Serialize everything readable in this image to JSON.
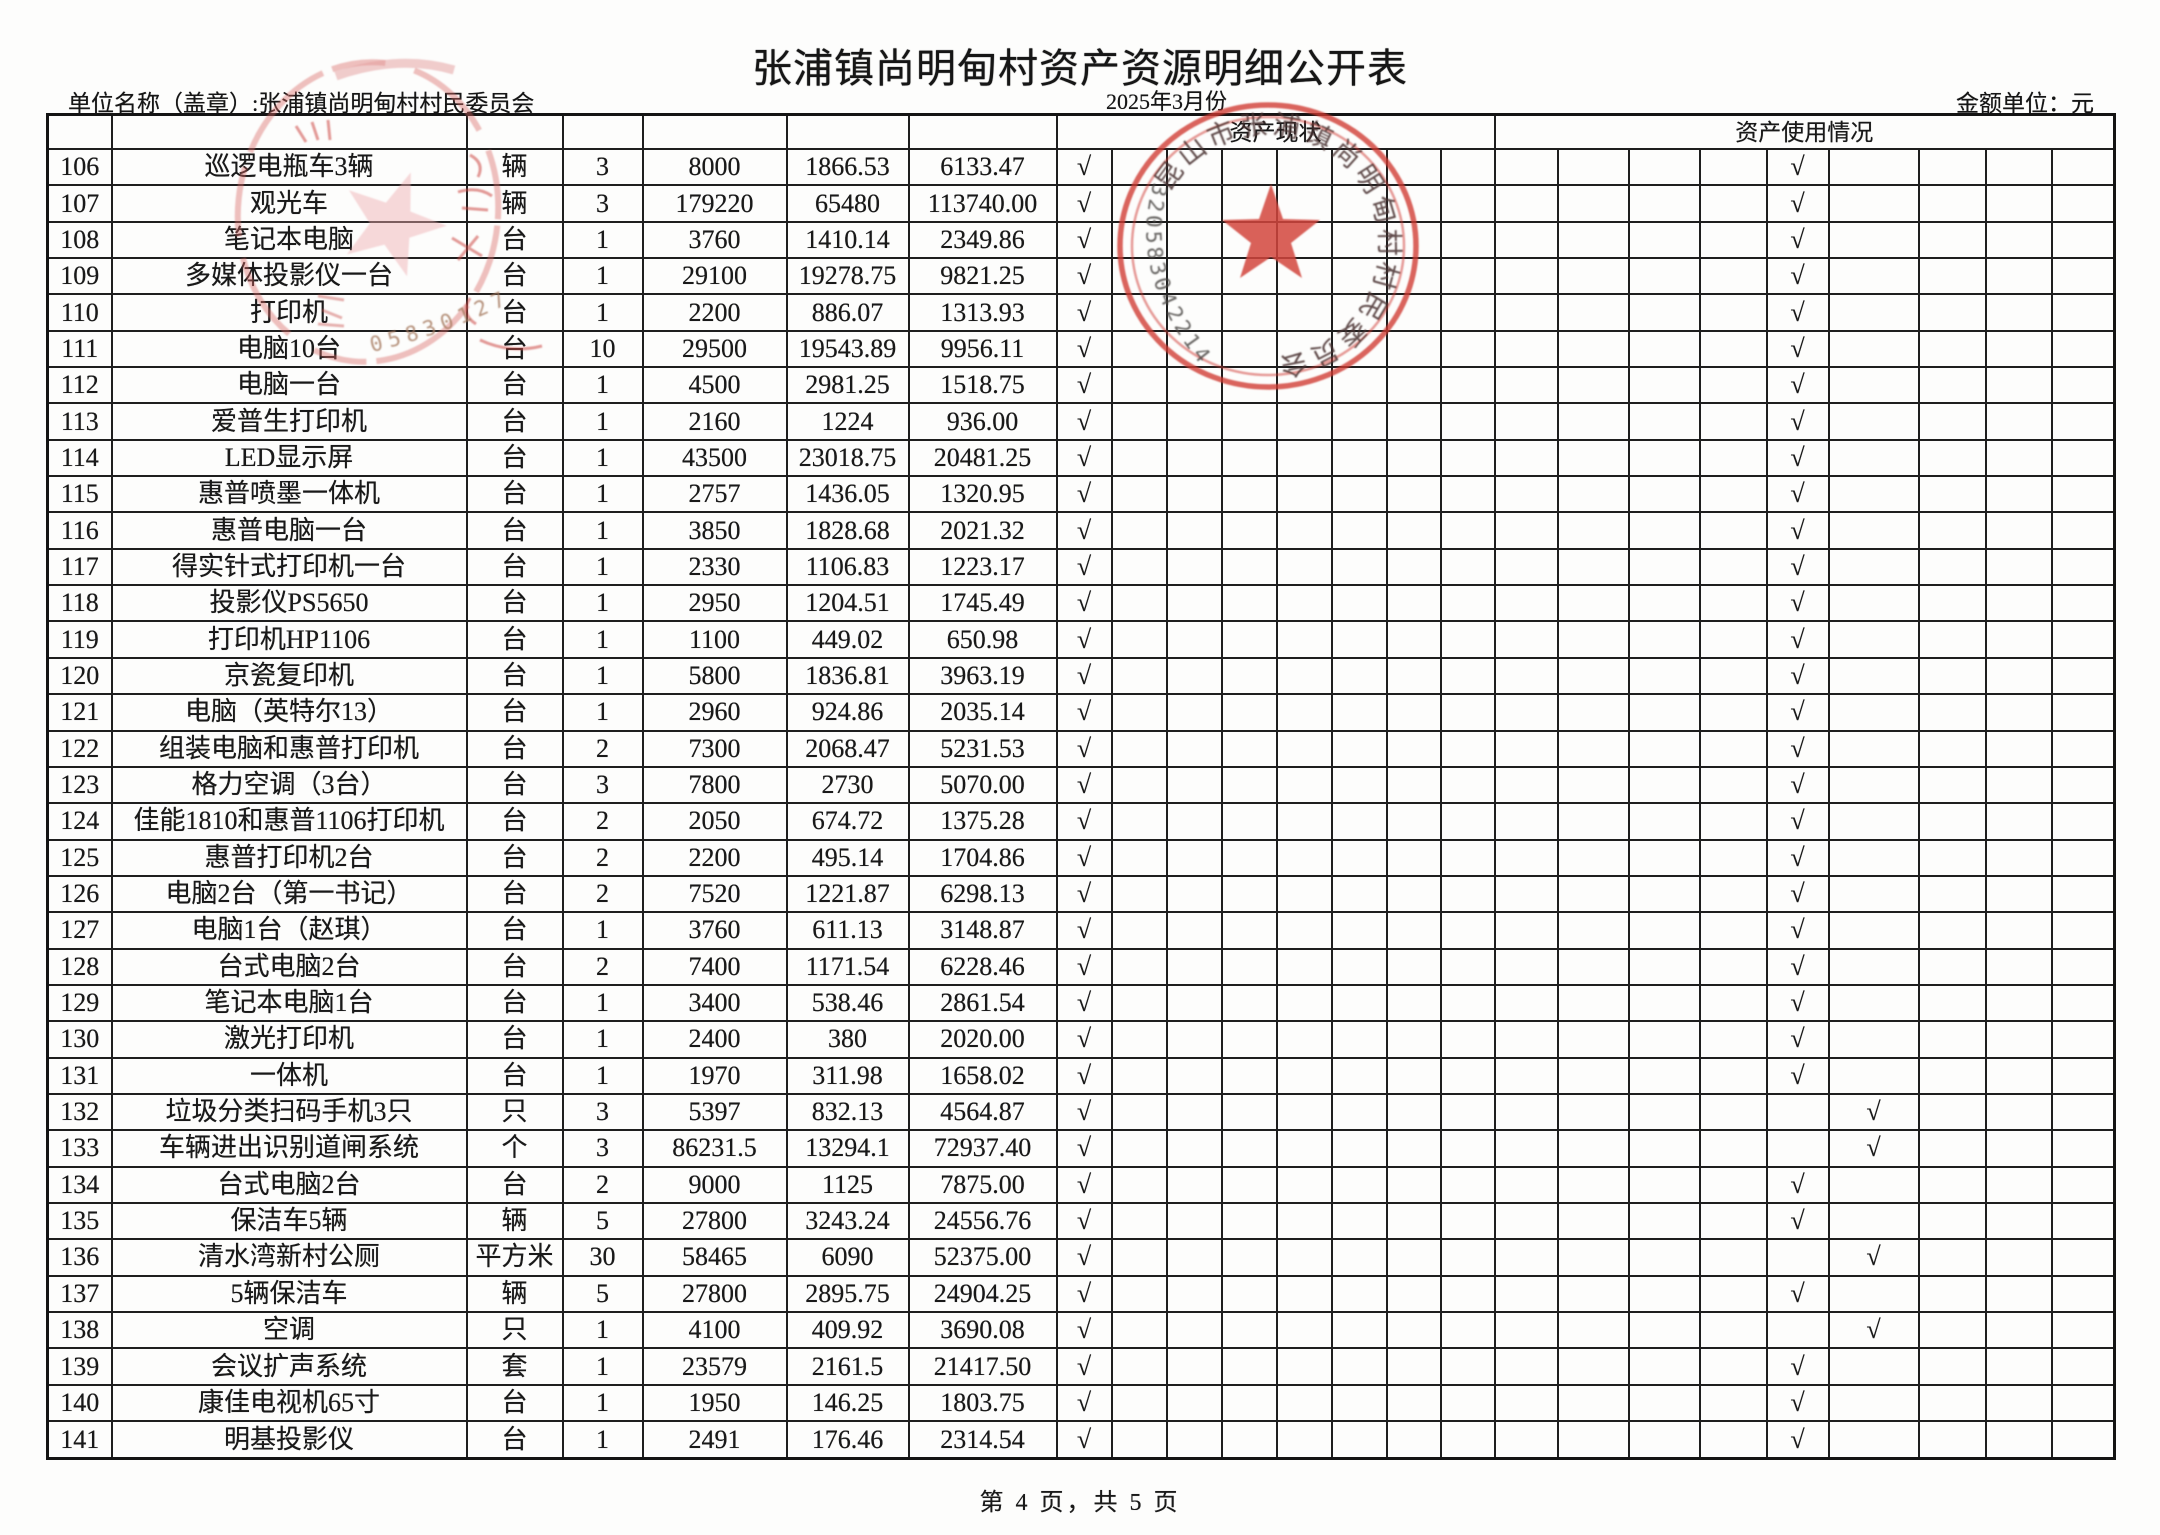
{
  "page": {
    "title": "张浦镇尚明甸村资产资源明细公开表",
    "unit_name_line": "单位名称（盖章）:张浦镇尚明甸村村民委员会",
    "period": "2025年3月份",
    "amount_unit": "金额单位：元",
    "footer": "第 4 页，共 5 页"
  },
  "table": {
    "status_group_header": "资产现状",
    "usage_group_header": "资产使用情况",
    "status_sub_columns": 8,
    "usage_sub_columns": 9,
    "check_glyph": "√",
    "rows": [
      {
        "no": "106",
        "name": "巡逻电瓶车3辆",
        "unit": "辆",
        "qty": "3",
        "original": "8000",
        "depreciation": "1866.53",
        "net": "6133.47",
        "status_mark": 1,
        "usage_mark": 5
      },
      {
        "no": "107",
        "name": "观光车",
        "unit": "辆",
        "qty": "3",
        "original": "179220",
        "depreciation": "65480",
        "net": "113740.00",
        "status_mark": 1,
        "usage_mark": 5
      },
      {
        "no": "108",
        "name": "笔记本电脑",
        "unit": "台",
        "qty": "1",
        "original": "3760",
        "depreciation": "1410.14",
        "net": "2349.86",
        "status_mark": 1,
        "usage_mark": 5
      },
      {
        "no": "109",
        "name": "多媒体投影仪一台",
        "unit": "台",
        "qty": "1",
        "original": "29100",
        "depreciation": "19278.75",
        "net": "9821.25",
        "status_mark": 1,
        "usage_mark": 5
      },
      {
        "no": "110",
        "name": "打印机",
        "unit": "台",
        "qty": "1",
        "original": "2200",
        "depreciation": "886.07",
        "net": "1313.93",
        "status_mark": 1,
        "usage_mark": 5
      },
      {
        "no": "111",
        "name": "电脑10台",
        "unit": "台",
        "qty": "10",
        "original": "29500",
        "depreciation": "19543.89",
        "net": "9956.11",
        "status_mark": 1,
        "usage_mark": 5
      },
      {
        "no": "112",
        "name": "电脑一台",
        "unit": "台",
        "qty": "1",
        "original": "4500",
        "depreciation": "2981.25",
        "net": "1518.75",
        "status_mark": 1,
        "usage_mark": 5
      },
      {
        "no": "113",
        "name": "爱普生打印机",
        "unit": "台",
        "qty": "1",
        "original": "2160",
        "depreciation": "1224",
        "net": "936.00",
        "status_mark": 1,
        "usage_mark": 5
      },
      {
        "no": "114",
        "name": "LED显示屏",
        "unit": "台",
        "qty": "1",
        "original": "43500",
        "depreciation": "23018.75",
        "net": "20481.25",
        "status_mark": 1,
        "usage_mark": 5
      },
      {
        "no": "115",
        "name": "惠普喷墨一体机",
        "unit": "台",
        "qty": "1",
        "original": "2757",
        "depreciation": "1436.05",
        "net": "1320.95",
        "status_mark": 1,
        "usage_mark": 5
      },
      {
        "no": "116",
        "name": "惠普电脑一台",
        "unit": "台",
        "qty": "1",
        "original": "3850",
        "depreciation": "1828.68",
        "net": "2021.32",
        "status_mark": 1,
        "usage_mark": 5
      },
      {
        "no": "117",
        "name": "得实针式打印机一台",
        "unit": "台",
        "qty": "1",
        "original": "2330",
        "depreciation": "1106.83",
        "net": "1223.17",
        "status_mark": 1,
        "usage_mark": 5
      },
      {
        "no": "118",
        "name": "投影仪PS5650",
        "unit": "台",
        "qty": "1",
        "original": "2950",
        "depreciation": "1204.51",
        "net": "1745.49",
        "status_mark": 1,
        "usage_mark": 5
      },
      {
        "no": "119",
        "name": "打印机HP1106",
        "unit": "台",
        "qty": "1",
        "original": "1100",
        "depreciation": "449.02",
        "net": "650.98",
        "status_mark": 1,
        "usage_mark": 5
      },
      {
        "no": "120",
        "name": "京瓷复印机",
        "unit": "台",
        "qty": "1",
        "original": "5800",
        "depreciation": "1836.81",
        "net": "3963.19",
        "status_mark": 1,
        "usage_mark": 5
      },
      {
        "no": "121",
        "name": "电脑（英特尔13）",
        "unit": "台",
        "qty": "1",
        "original": "2960",
        "depreciation": "924.86",
        "net": "2035.14",
        "status_mark": 1,
        "usage_mark": 5
      },
      {
        "no": "122",
        "name": "组装电脑和惠普打印机",
        "unit": "台",
        "qty": "2",
        "original": "7300",
        "depreciation": "2068.47",
        "net": "5231.53",
        "status_mark": 1,
        "usage_mark": 5
      },
      {
        "no": "123",
        "name": "格力空调（3台）",
        "unit": "台",
        "qty": "3",
        "original": "7800",
        "depreciation": "2730",
        "net": "5070.00",
        "status_mark": 1,
        "usage_mark": 5
      },
      {
        "no": "124",
        "name": "佳能1810和惠普1106打印机",
        "unit": "台",
        "qty": "2",
        "original": "2050",
        "depreciation": "674.72",
        "net": "1375.28",
        "status_mark": 1,
        "usage_mark": 5
      },
      {
        "no": "125",
        "name": "惠普打印机2台",
        "unit": "台",
        "qty": "2",
        "original": "2200",
        "depreciation": "495.14",
        "net": "1704.86",
        "status_mark": 1,
        "usage_mark": 5
      },
      {
        "no": "126",
        "name": "电脑2台（第一书记）",
        "unit": "台",
        "qty": "2",
        "original": "7520",
        "depreciation": "1221.87",
        "net": "6298.13",
        "status_mark": 1,
        "usage_mark": 5
      },
      {
        "no": "127",
        "name": "电脑1台（赵琪）",
        "unit": "台",
        "qty": "1",
        "original": "3760",
        "depreciation": "611.13",
        "net": "3148.87",
        "status_mark": 1,
        "usage_mark": 5
      },
      {
        "no": "128",
        "name": "台式电脑2台",
        "unit": "台",
        "qty": "2",
        "original": "7400",
        "depreciation": "1171.54",
        "net": "6228.46",
        "status_mark": 1,
        "usage_mark": 5
      },
      {
        "no": "129",
        "name": "笔记本电脑1台",
        "unit": "台",
        "qty": "1",
        "original": "3400",
        "depreciation": "538.46",
        "net": "2861.54",
        "status_mark": 1,
        "usage_mark": 5
      },
      {
        "no": "130",
        "name": "激光打印机",
        "unit": "台",
        "qty": "1",
        "original": "2400",
        "depreciation": "380",
        "net": "2020.00",
        "status_mark": 1,
        "usage_mark": 5
      },
      {
        "no": "131",
        "name": "一体机",
        "unit": "台",
        "qty": "1",
        "original": "1970",
        "depreciation": "311.98",
        "net": "1658.02",
        "status_mark": 1,
        "usage_mark": 5
      },
      {
        "no": "132",
        "name": "垃圾分类扫码手机3只",
        "unit": "只",
        "qty": "3",
        "original": "5397",
        "depreciation": "832.13",
        "net": "4564.87",
        "status_mark": 1,
        "usage_mark": 6
      },
      {
        "no": "133",
        "name": "车辆进出识别道闸系统",
        "unit": "个",
        "qty": "3",
        "original": "86231.5",
        "depreciation": "13294.1",
        "net": "72937.40",
        "status_mark": 1,
        "usage_mark": 6
      },
      {
        "no": "134",
        "name": "台式电脑2台",
        "unit": "台",
        "qty": "2",
        "original": "9000",
        "depreciation": "1125",
        "net": "7875.00",
        "status_mark": 1,
        "usage_mark": 5
      },
      {
        "no": "135",
        "name": "保洁车5辆",
        "unit": "辆",
        "qty": "5",
        "original": "27800",
        "depreciation": "3243.24",
        "net": "24556.76",
        "status_mark": 1,
        "usage_mark": 5
      },
      {
        "no": "136",
        "name": "清水湾新村公厕",
        "unit": "平方米",
        "qty": "30",
        "original": "58465",
        "depreciation": "6090",
        "net": "52375.00",
        "status_mark": 1,
        "usage_mark": 6
      },
      {
        "no": "137",
        "name": "5辆保洁车",
        "unit": "辆",
        "qty": "5",
        "original": "27800",
        "depreciation": "2895.75",
        "net": "24904.25",
        "status_mark": 1,
        "usage_mark": 5
      },
      {
        "no": "138",
        "name": "空调",
        "unit": "只",
        "qty": "1",
        "original": "4100",
        "depreciation": "409.92",
        "net": "3690.08",
        "status_mark": 1,
        "usage_mark": 6
      },
      {
        "no": "139",
        "name": "会议扩声系统",
        "unit": "套",
        "qty": "1",
        "original": "23579",
        "depreciation": "2161.5",
        "net": "21417.50",
        "status_mark": 1,
        "usage_mark": 5
      },
      {
        "no": "140",
        "name": "康佳电视机65寸",
        "unit": "台",
        "qty": "1",
        "original": "1950",
        "depreciation": "146.25",
        "net": "1803.75",
        "status_mark": 1,
        "usage_mark": 5
      },
      {
        "no": "141",
        "name": "明基投影仪",
        "unit": "台",
        "qty": "1",
        "original": "2491",
        "depreciation": "176.46",
        "net": "2314.54",
        "status_mark": 1,
        "usage_mark": 5
      }
    ]
  },
  "stamps": {
    "main_seal": {
      "ring_text": "昆山市张浦镇尚明甸村村民委员会",
      "serial": "3205830422144",
      "ring_color": "#cf3a31"
    },
    "secondary_seal": {
      "serial": "05830127",
      "ring_color": "#d96a66"
    }
  }
}
